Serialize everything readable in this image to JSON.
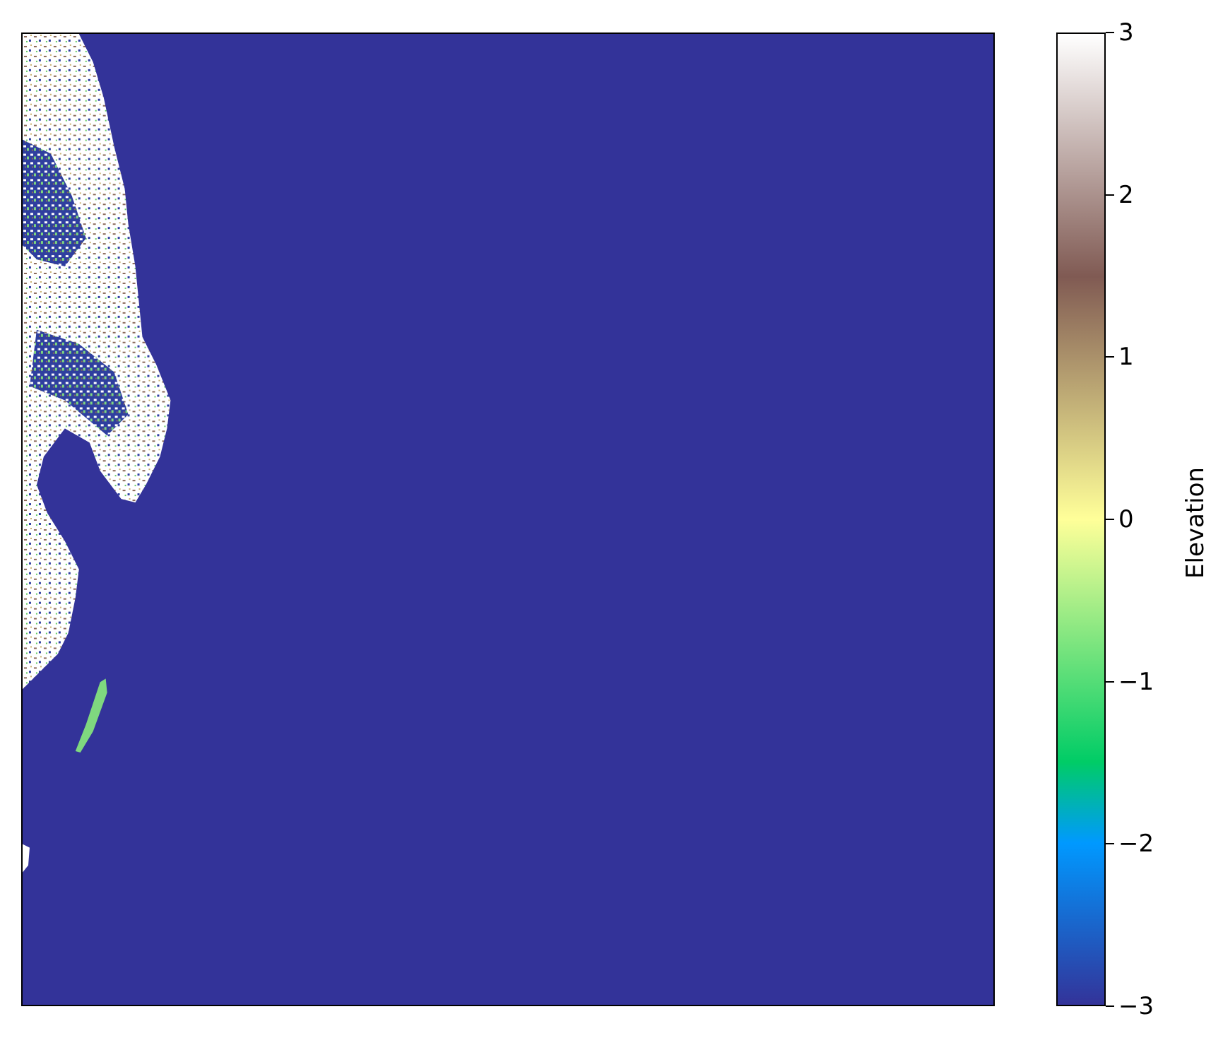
{
  "map": {
    "background_color": "#333399",
    "colormap": "terrain",
    "x_axis_ticks": "none",
    "y_axis_ticks": "none"
  },
  "colorbar": {
    "label": "Elevation",
    "range": [
      -3,
      3
    ],
    "ticks": [
      {
        "value": 3,
        "label": "3"
      },
      {
        "value": 2,
        "label": "2"
      },
      {
        "value": 1,
        "label": "1"
      },
      {
        "value": 0,
        "label": "0"
      },
      {
        "value": -1,
        "label": "−1"
      },
      {
        "value": -2,
        "label": "−2"
      },
      {
        "value": -3,
        "label": "−3"
      }
    ],
    "stops": [
      {
        "value": -3,
        "color": "#333399"
      },
      {
        "value": -2,
        "color": "#0099ff"
      },
      {
        "value": -1.5,
        "color": "#00cc66"
      },
      {
        "value": 0,
        "color": "#ffff99"
      },
      {
        "value": 1.5,
        "color": "#805a53"
      },
      {
        "value": 3,
        "color": "#ffffff"
      }
    ]
  }
}
